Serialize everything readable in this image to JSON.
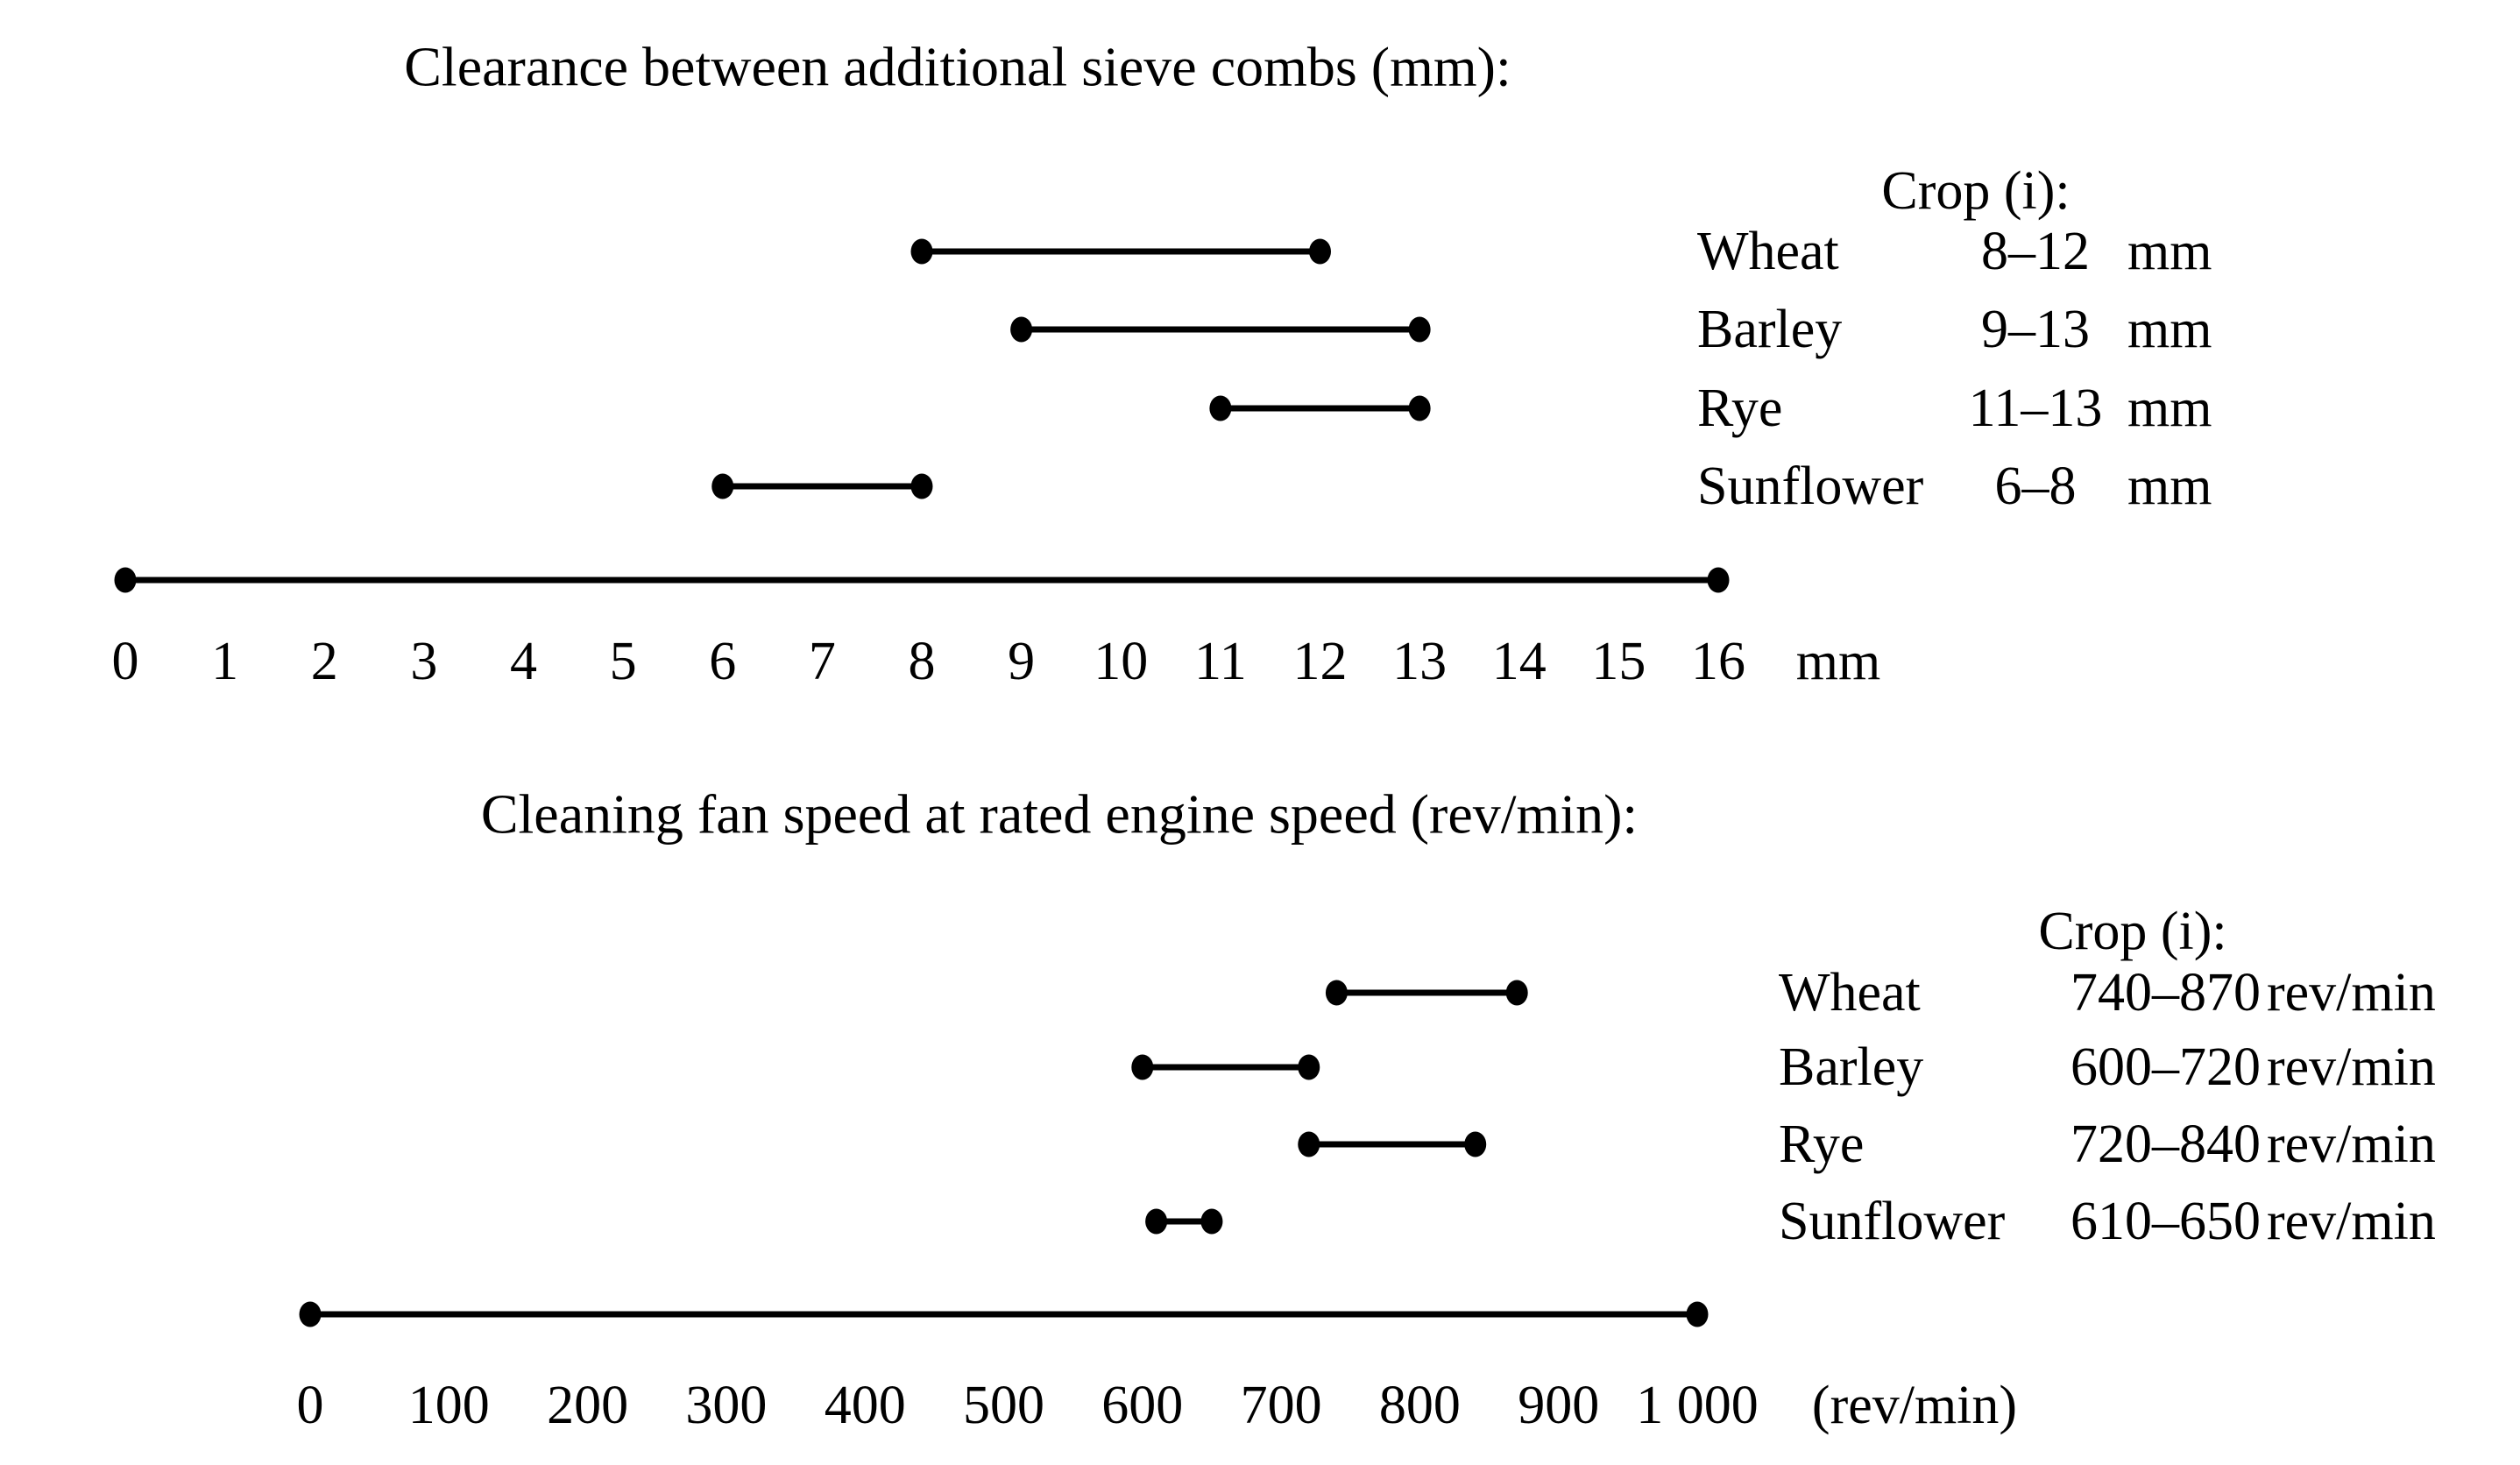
{
  "page": {
    "background_color": "#ffffff",
    "text_color": "#000000"
  },
  "chart_data": [
    {
      "type": "range_interval",
      "title": "Clearance between additional sieve combs (mm):",
      "legend_title": "Crop (i):",
      "legend_position": "right",
      "grid": false,
      "categories": [
        "Wheat",
        "Barley",
        "Rye",
        "Sunflower"
      ],
      "series": [
        {
          "name": "Wheat",
          "low": 8,
          "high": 12,
          "range_label": "8–12",
          "unit": "mm"
        },
        {
          "name": "Barley",
          "low": 9,
          "high": 13,
          "range_label": "9–13",
          "unit": "mm"
        },
        {
          "name": "Rye",
          "low": 11,
          "high": 13,
          "range_label": "11–13",
          "unit": "mm"
        },
        {
          "name": "Sunflower",
          "low": 6,
          "high": 8,
          "range_label": "6–8",
          "unit": "mm"
        }
      ],
      "axis": {
        "min": 0,
        "max": 16,
        "tick_step": 1,
        "tick_labels": [
          "0",
          "1",
          "2",
          "3",
          "4",
          "5",
          "6",
          "7",
          "8",
          "9",
          "10",
          "11",
          "12",
          "13",
          "14",
          "15",
          "16"
        ],
        "unit_label": "mm"
      },
      "xlim": [
        0,
        16
      ]
    },
    {
      "type": "range_interval",
      "title": "Cleaning fan speed at rated engine speed (rev/min):",
      "legend_title": "Crop (i):",
      "legend_position": "right",
      "grid": false,
      "categories": [
        "Wheat",
        "Barley",
        "Rye",
        "Sunflower"
      ],
      "series": [
        {
          "name": "Wheat",
          "low": 740,
          "high": 870,
          "range_label": "740–870",
          "unit": "rev/min"
        },
        {
          "name": "Barley",
          "low": 600,
          "high": 720,
          "range_label": "600–720",
          "unit": "rev/min"
        },
        {
          "name": "Rye",
          "low": 720,
          "high": 840,
          "range_label": "720–840",
          "unit": "rev/min"
        },
        {
          "name": "Sunflower",
          "low": 610,
          "high": 650,
          "range_label": "610–650",
          "unit": "rev/min"
        }
      ],
      "axis": {
        "min": 0,
        "max": 1000,
        "tick_step": 100,
        "tick_labels": [
          "0",
          "100",
          "200",
          "300",
          "400",
          "500",
          "600",
          "700",
          "800",
          "900",
          "1 000"
        ],
        "unit_label": "(rev/min)"
      },
      "xlim": [
        0,
        1000
      ]
    }
  ]
}
